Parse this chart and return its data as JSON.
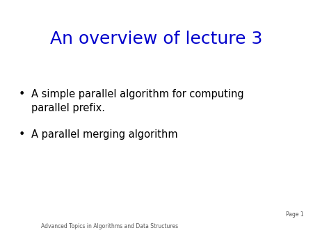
{
  "title": "An overview of lecture 3",
  "title_color": "#0000CC",
  "title_fontsize": 18,
  "title_font": "DejaVu Sans",
  "bullet_points": [
    "A simple parallel algorithm for computing\nparallel prefix.",
    "A parallel merging algorithm"
  ],
  "bullet_color": "#000000",
  "bullet_fontsize": 10.5,
  "footer_left": "Advanced Topics in Algorithms and Data Structures",
  "footer_right": "Page 1",
  "footer_fontsize": 5.5,
  "background_color": "#ffffff",
  "slide_background": "#ffffff",
  "bullet_symbol": "•"
}
